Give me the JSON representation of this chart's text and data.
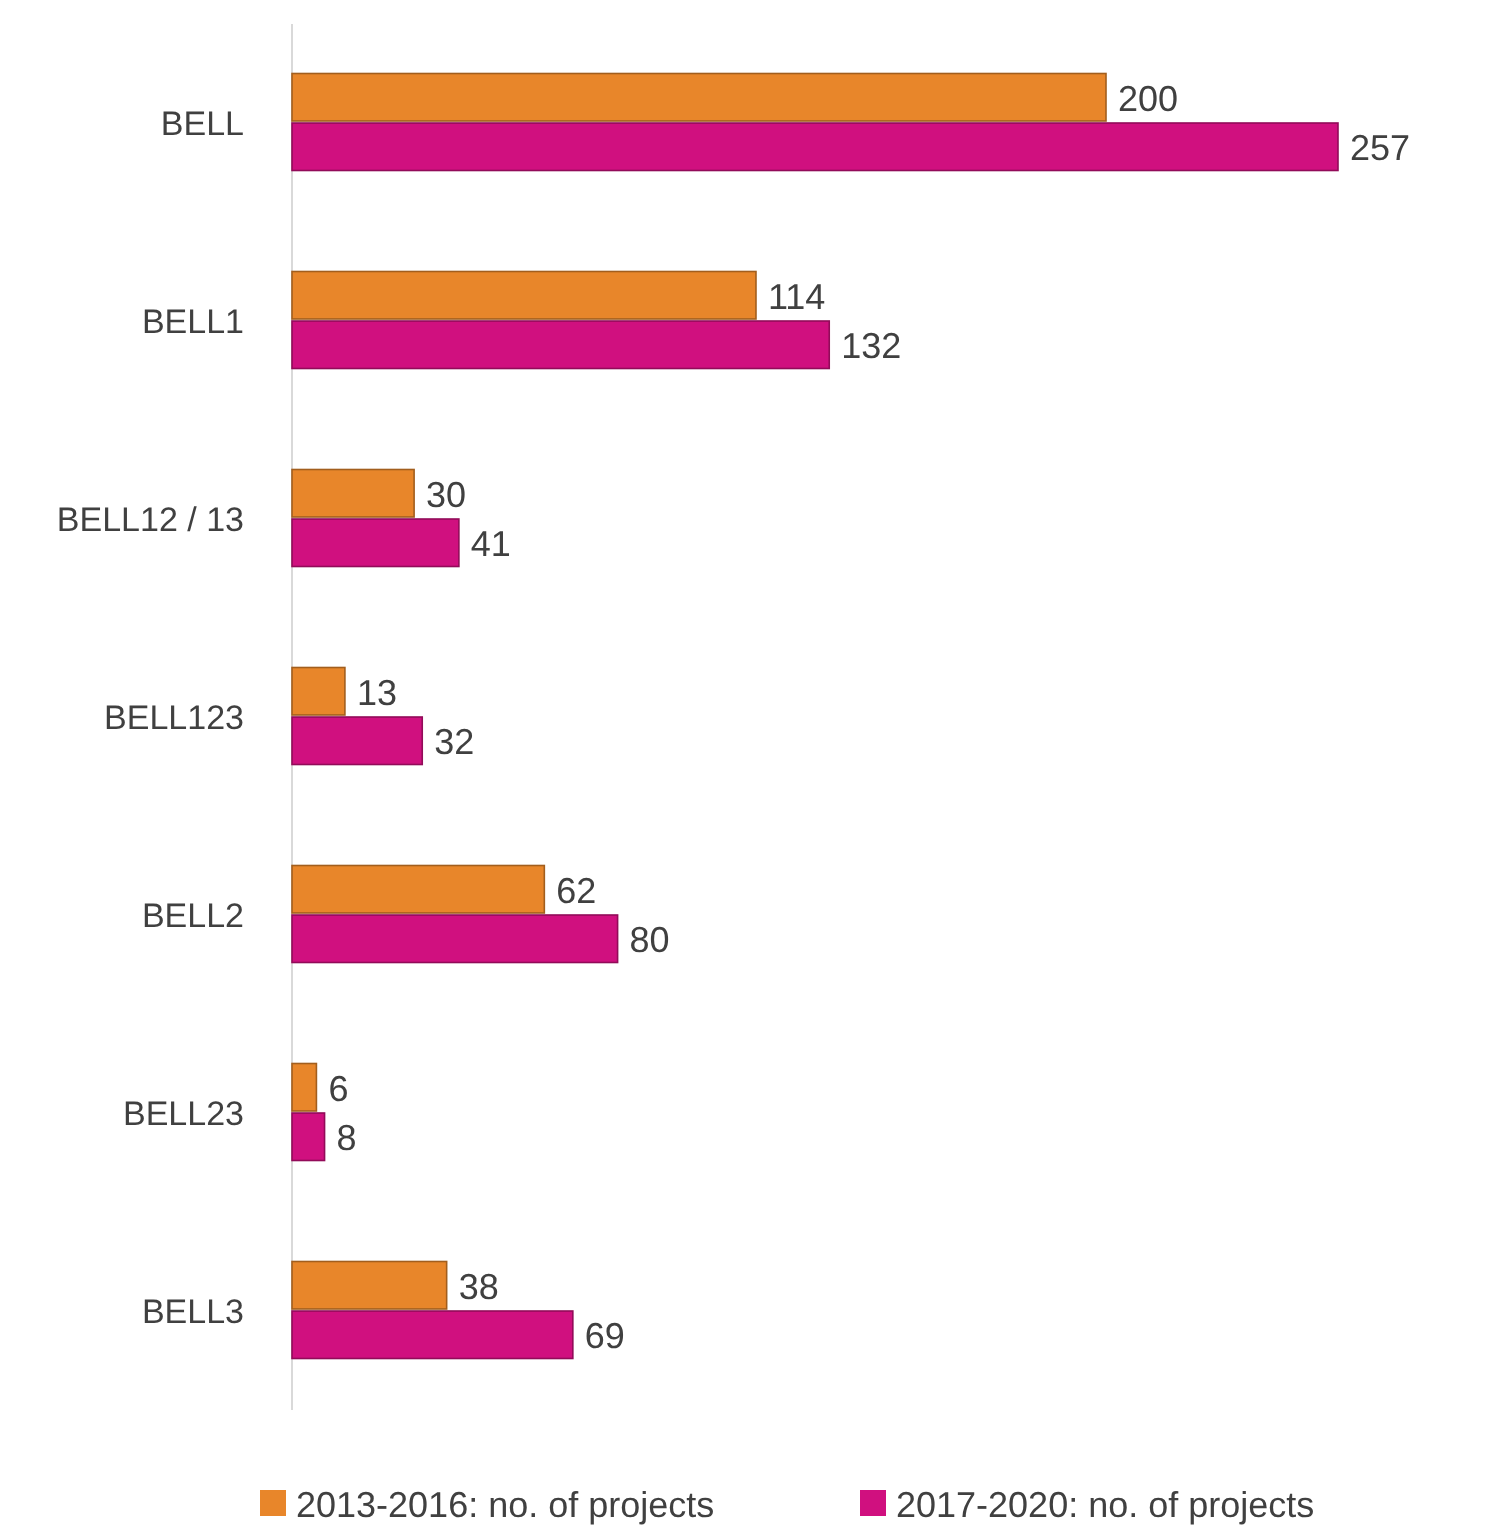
{
  "chart_data": {
    "type": "bar",
    "orientation": "horizontal",
    "categories": [
      "BELL",
      "BELL1",
      "BELL12 / 13",
      "BELL123",
      "BELL2",
      "BELL23",
      "BELL3"
    ],
    "series": [
      {
        "name": "2013-2016: no. of projects",
        "color": "#e8862a",
        "values": [
          200,
          114,
          30,
          13,
          62,
          6,
          38
        ]
      },
      {
        "name": "2017-2020: no. of projects",
        "color": "#d0107f",
        "values": [
          257,
          132,
          41,
          32,
          80,
          8,
          69
        ]
      }
    ],
    "data_labels": true,
    "legend": "bottom"
  }
}
